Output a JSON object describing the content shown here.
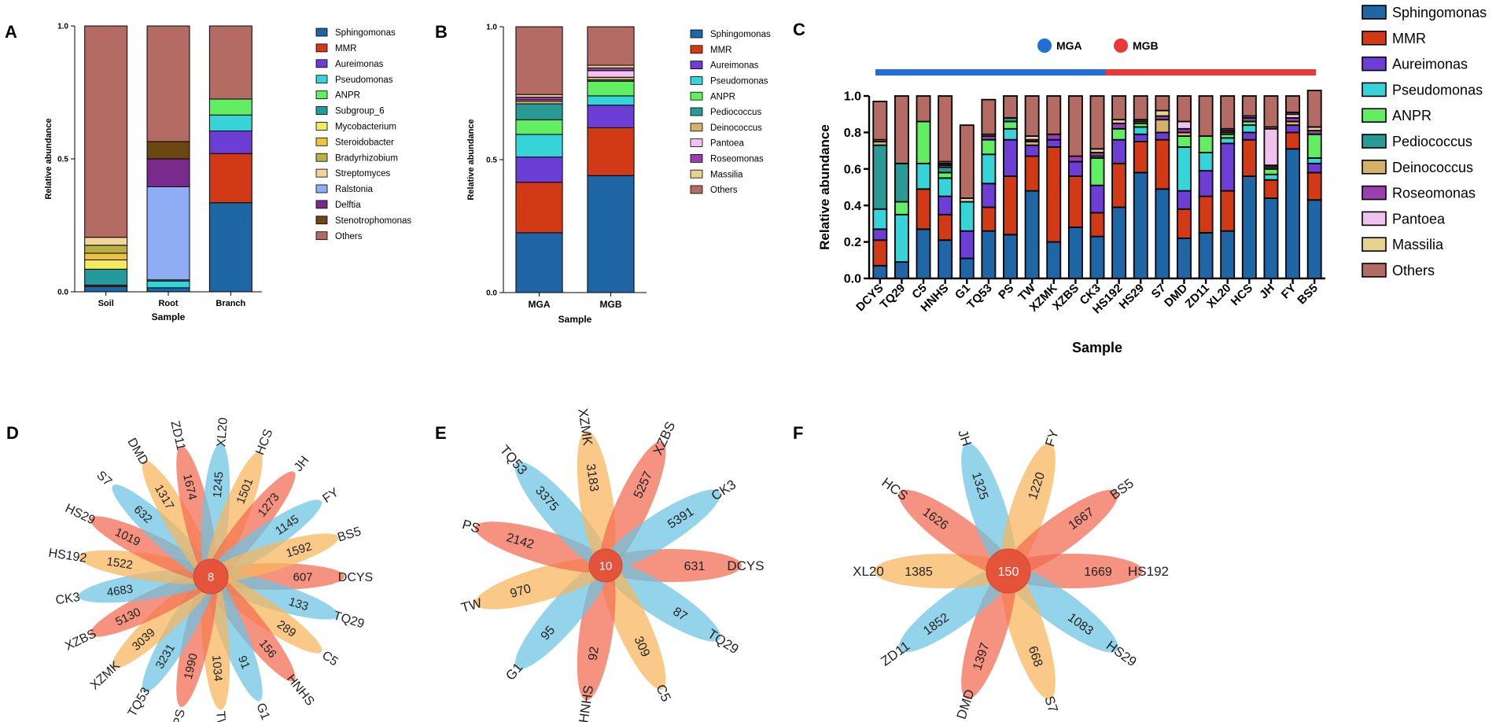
{
  "panels": {
    "A": "A",
    "B": "B",
    "C": "C",
    "D": "D",
    "E": "E",
    "F": "F"
  },
  "colors": {
    "Sphingomonas": "#1f66a6",
    "MMR": "#d23a17",
    "Aureimonas": "#6c3ed6",
    "Pseudomonas": "#36d3d9",
    "ANPR": "#62ee62",
    "Subgroup_6": "#219b9b",
    "Mycobacterium": "#f2eb5c",
    "Steroidobacter": "#eec33f",
    "Bradyrhizobium": "#bab04a",
    "Streptomyces": "#f0d59a",
    "Ralstonia": "#8fadf5",
    "Delftia": "#7a2a8c",
    "Stenotrophomonas": "#6b4712",
    "Pediococcus": "#2a9a96",
    "Deinococcus": "#d4b26c",
    "Pantoea": "#f1c2ee",
    "Roseomonas": "#9b3fb0",
    "Massilia": "#e7d28f",
    "Others": "#b36b64",
    "blue_petal": "#69c3e3",
    "orange_petal": "#f8b45a",
    "red_petal": "#f26a4f",
    "center": "#e5533a"
  },
  "chart_data": [
    {
      "id": "A",
      "type": "bar",
      "stacked": true,
      "categories": [
        "Soil",
        "Root",
        "Branch"
      ],
      "xlabel": "Sample",
      "ylabel": "Relative abundance",
      "ylim": [
        0,
        1
      ],
      "yticks": [
        "0.0",
        "0.5",
        "1.0"
      ],
      "legend": [
        "Sphingomonas",
        "MMR",
        "Aureimonas",
        "Pseudomonas",
        "ANPR",
        "Subgroup_6",
        "Mycobacterium",
        "Steroidobacter",
        "Bradyrhizobium",
        "Streptomyces",
        "Ralstonia",
        "Delftia",
        "Stenotrophomonas",
        "Others"
      ],
      "series": [
        {
          "name": "Sphingomonas",
          "values": [
            0.02,
            0.015,
            0.335
          ]
        },
        {
          "name": "MMR",
          "values": [
            0.005,
            0.0,
            0.185
          ]
        },
        {
          "name": "Aureimonas",
          "values": [
            0.0,
            0.0,
            0.085
          ]
        },
        {
          "name": "Pseudomonas",
          "values": [
            0.0,
            0.025,
            0.06
          ]
        },
        {
          "name": "ANPR",
          "values": [
            0.0,
            0.0,
            0.06
          ]
        },
        {
          "name": "Subgroup_6",
          "values": [
            0.06,
            0.005,
            0.0
          ]
        },
        {
          "name": "Mycobacterium",
          "values": [
            0.035,
            0.0,
            0.0
          ]
        },
        {
          "name": "Steroidobacter",
          "values": [
            0.025,
            0.0,
            0.0
          ]
        },
        {
          "name": "Bradyrhizobium",
          "values": [
            0.03,
            0.0,
            0.0
          ]
        },
        {
          "name": "Streptomyces",
          "values": [
            0.03,
            0.0,
            0.0
          ]
        },
        {
          "name": "Ralstonia",
          "values": [
            0.0,
            0.35,
            0.0
          ]
        },
        {
          "name": "Delftia",
          "values": [
            0.0,
            0.105,
            0.0
          ]
        },
        {
          "name": "Stenotrophomonas",
          "values": [
            0.0,
            0.065,
            0.0
          ]
        },
        {
          "name": "Others",
          "values": [
            0.795,
            0.435,
            0.275
          ]
        }
      ]
    },
    {
      "id": "B",
      "type": "bar",
      "stacked": true,
      "categories": [
        "MGA",
        "MGB"
      ],
      "xlabel": "Sample",
      "ylabel": "Relative abundance",
      "ylim": [
        0,
        1
      ],
      "yticks": [
        "0.0",
        "0.5",
        "1.0"
      ],
      "legend": [
        "Sphingomonas",
        "MMR",
        "Aureimonas",
        "Pseudomonas",
        "ANPR",
        "Pediococcus",
        "Deinococcus",
        "Pantoea",
        "Roseomonas",
        "Massilia",
        "Others"
      ],
      "series": [
        {
          "name": "Sphingomonas",
          "values": [
            0.225,
            0.44
          ]
        },
        {
          "name": "MMR",
          "values": [
            0.19,
            0.18
          ]
        },
        {
          "name": "Aureimonas",
          "values": [
            0.095,
            0.085
          ]
        },
        {
          "name": "Pseudomonas",
          "values": [
            0.085,
            0.035
          ]
        },
        {
          "name": "ANPR",
          "values": [
            0.055,
            0.055
          ]
        },
        {
          "name": "Pediococcus",
          "values": [
            0.06,
            0.005
          ]
        },
        {
          "name": "Deinococcus",
          "values": [
            0.01,
            0.01
          ]
        },
        {
          "name": "Pantoea",
          "values": [
            0.005,
            0.025
          ]
        },
        {
          "name": "Roseomonas",
          "values": [
            0.01,
            0.01
          ]
        },
        {
          "name": "Massilia",
          "values": [
            0.01,
            0.01
          ]
        },
        {
          "name": "Others",
          "values": [
            0.255,
            0.145
          ]
        }
      ]
    },
    {
      "id": "C",
      "type": "bar",
      "stacked": true,
      "categories": [
        "DCYS",
        "TQ29",
        "C5",
        "HNHS",
        "G1",
        "TQ53",
        "PS",
        "TW",
        "XZMK",
        "XZBS",
        "CK3",
        "HS192",
        "HS29",
        "S7",
        "DMD",
        "ZD11",
        "XL20",
        "HCS",
        "JH",
        "FY",
        "BS5"
      ],
      "groups": [
        {
          "name": "MGA",
          "color": "#1f6fd6",
          "from": 0,
          "to": 10
        },
        {
          "name": "MGB",
          "color": "#e8393a",
          "from": 11,
          "to": 20
        }
      ],
      "xlabel": "Sample",
      "ylabel": "Relative abundance",
      "ylim": [
        0,
        1
      ],
      "yticks": [
        "0.0",
        "0.2",
        "0.4",
        "0.6",
        "0.8",
        "1.0"
      ],
      "legend": [
        "Sphingomonas",
        "MMR",
        "Aureimonas",
        "Pseudomonas",
        "ANPR",
        "Pediococcus",
        "Deinococcus",
        "Roseomonas",
        "Pantoea",
        "Massilia",
        "Others"
      ],
      "series": [
        {
          "name": "Sphingomonas",
          "values": [
            0.07,
            0.09,
            0.27,
            0.21,
            0.11,
            0.26,
            0.24,
            0.48,
            0.2,
            0.28,
            0.23,
            0.39,
            0.58,
            0.49,
            0.22,
            0.25,
            0.26,
            0.56,
            0.44,
            0.71,
            0.43
          ]
        },
        {
          "name": "MMR",
          "values": [
            0.14,
            0.0,
            0.22,
            0.14,
            0.0,
            0.13,
            0.32,
            0.19,
            0.52,
            0.28,
            0.13,
            0.24,
            0.17,
            0.27,
            0.16,
            0.2,
            0.22,
            0.2,
            0.1,
            0.09,
            0.15
          ]
        },
        {
          "name": "Aureimonas",
          "values": [
            0.06,
            0.0,
            0.0,
            0.1,
            0.15,
            0.13,
            0.2,
            0.06,
            0.04,
            0.08,
            0.15,
            0.13,
            0.04,
            0.04,
            0.1,
            0.14,
            0.26,
            0.04,
            0.0,
            0.04,
            0.05
          ]
        },
        {
          "name": "Pseudomonas",
          "values": [
            0.11,
            0.26,
            0.14,
            0.1,
            0.16,
            0.16,
            0.06,
            0.0,
            0.0,
            0.0,
            0.0,
            0.0,
            0.04,
            0.0,
            0.24,
            0.1,
            0.03,
            0.04,
            0.03,
            0.0,
            0.03
          ]
        },
        {
          "name": "ANPR",
          "values": [
            0.0,
            0.07,
            0.23,
            0.03,
            0.0,
            0.08,
            0.04,
            0.0,
            0.0,
            0.0,
            0.15,
            0.06,
            0.02,
            0.0,
            0.06,
            0.09,
            0.02,
            0.02,
            0.03,
            0.0,
            0.13
          ]
        },
        {
          "name": "Pediococcus",
          "values": [
            0.35,
            0.21,
            0.0,
            0.03,
            0.0,
            0.0,
            0.02,
            0.0,
            0.0,
            0.0,
            0.0,
            0.0,
            0.0,
            0.0,
            0.0,
            0.0,
            0.0,
            0.0,
            0.0,
            0.0,
            0.0
          ]
        },
        {
          "name": "Deinococcus",
          "values": [
            0.02,
            0.0,
            0.0,
            0.01,
            0.0,
            0.0,
            0.0,
            0.02,
            0.0,
            0.0,
            0.01,
            0.0,
            0.01,
            0.07,
            0.02,
            0.0,
            0.01,
            0.0,
            0.01,
            0.02,
            0.0
          ]
        },
        {
          "name": "Roseomonas",
          "values": [
            0.0,
            0.0,
            0.0,
            0.01,
            0.0,
            0.02,
            0.0,
            0.01,
            0.03,
            0.03,
            0.02,
            0.03,
            0.01,
            0.02,
            0.02,
            0.0,
            0.01,
            0.02,
            0.01,
            0.02,
            0.02
          ]
        },
        {
          "name": "Pantoea",
          "values": [
            0.0,
            0.0,
            0.0,
            0.0,
            0.0,
            0.0,
            0.0,
            0.0,
            0.0,
            0.0,
            0.0,
            0.0,
            0.0,
            0.0,
            0.04,
            0.0,
            0.0,
            0.0,
            0.2,
            0.02,
            0.0
          ]
        },
        {
          "name": "Massilia",
          "values": [
            0.01,
            0.0,
            0.0,
            0.01,
            0.02,
            0.01,
            0.0,
            0.02,
            0.0,
            0.0,
            0.02,
            0.02,
            0.0,
            0.03,
            0.0,
            0.0,
            0.01,
            0.01,
            0.01,
            0.01,
            0.02
          ]
        },
        {
          "name": "Others",
          "values": [
            0.21,
            0.37,
            0.14,
            0.36,
            0.4,
            0.19,
            0.12,
            0.22,
            0.21,
            0.33,
            0.29,
            0.13,
            0.13,
            0.08,
            0.14,
            0.22,
            0.18,
            0.11,
            0.17,
            0.09,
            0.2
          ]
        }
      ]
    },
    {
      "id": "D",
      "type": "flower",
      "center": "8",
      "petals": [
        {
          "label": "DCYS",
          "value": "607"
        },
        {
          "label": "TQ29",
          "value": "133"
        },
        {
          "label": "C5",
          "value": "289"
        },
        {
          "label": "HNHS",
          "value": "156"
        },
        {
          "label": "G1",
          "value": "91"
        },
        {
          "label": "TW",
          "value": "1034"
        },
        {
          "label": "PS",
          "value": "1990"
        },
        {
          "label": "TQ53",
          "value": "3231"
        },
        {
          "label": "XZMK",
          "value": "3039"
        },
        {
          "label": "XZBS",
          "value": "5130"
        },
        {
          "label": "CK3",
          "value": "4683"
        },
        {
          "label": "HS192",
          "value": "1522"
        },
        {
          "label": "HS29",
          "value": "1019"
        },
        {
          "label": "S7",
          "value": "632"
        },
        {
          "label": "DMD",
          "value": "1317"
        },
        {
          "label": "ZD11",
          "value": "1674"
        },
        {
          "label": "XL20",
          "value": "1245"
        },
        {
          "label": "HCS",
          "value": "1501"
        },
        {
          "label": "JH",
          "value": "1273"
        },
        {
          "label": "FY",
          "value": "1145"
        },
        {
          "label": "BS5",
          "value": "1592"
        }
      ]
    },
    {
      "id": "E",
      "type": "flower",
      "center": "10",
      "petals": [
        {
          "label": "DCYS",
          "value": "631"
        },
        {
          "label": "TQ29",
          "value": "87"
        },
        {
          "label": "C5",
          "value": "309"
        },
        {
          "label": "HNHS",
          "value": "92"
        },
        {
          "label": "G1",
          "value": "95"
        },
        {
          "label": "TW",
          "value": "970"
        },
        {
          "label": "PS",
          "value": "2142"
        },
        {
          "label": "TQ53",
          "value": "3375"
        },
        {
          "label": "XZMK",
          "value": "3183"
        },
        {
          "label": "XZBS",
          "value": "5257"
        },
        {
          "label": "CK3",
          "value": "5391"
        }
      ]
    },
    {
      "id": "F",
      "type": "flower",
      "center": "150",
      "petals": [
        {
          "label": "HS192",
          "value": "1669"
        },
        {
          "label": "HS29",
          "value": "1083"
        },
        {
          "label": "S7",
          "value": "668"
        },
        {
          "label": "DMD",
          "value": "1397"
        },
        {
          "label": "ZD11",
          "value": "1852"
        },
        {
          "label": "XL20",
          "value": "1385"
        },
        {
          "label": "HCS",
          "value": "1626"
        },
        {
          "label": "JH",
          "value": "1325"
        },
        {
          "label": "FY",
          "value": "1220"
        },
        {
          "label": "BS5",
          "value": "1667"
        }
      ]
    }
  ]
}
